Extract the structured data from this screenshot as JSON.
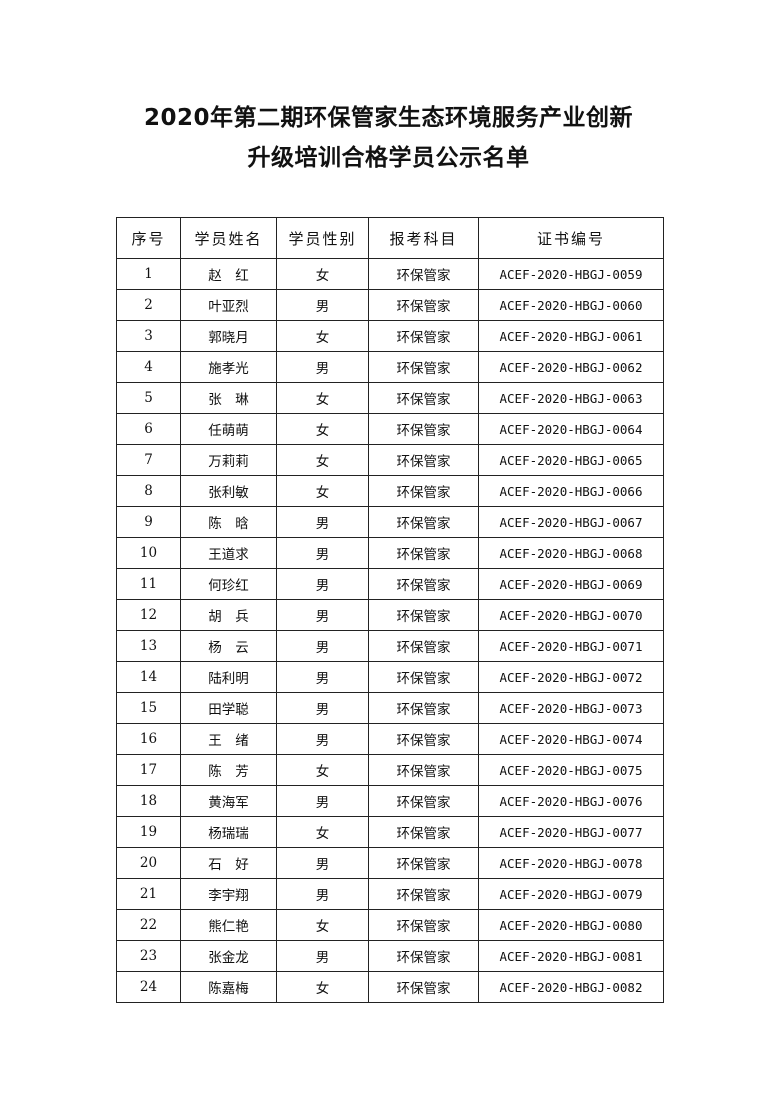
{
  "title_line1": "2020年第二期环保管家生态环境服务产业创新",
  "title_line2": "升级培训合格学员公示名单",
  "table": {
    "headers": [
      "序号",
      "学员姓名",
      "学员性别",
      "报考科目",
      "证书编号"
    ],
    "rows": [
      [
        "1",
        "赵　红",
        "女",
        "环保管家",
        "ACEF-2020-HBGJ-0059"
      ],
      [
        "2",
        "叶亚烈",
        "男",
        "环保管家",
        "ACEF-2020-HBGJ-0060"
      ],
      [
        "3",
        "郭晓月",
        "女",
        "环保管家",
        "ACEF-2020-HBGJ-0061"
      ],
      [
        "4",
        "施孝光",
        "男",
        "环保管家",
        "ACEF-2020-HBGJ-0062"
      ],
      [
        "5",
        "张　琳",
        "女",
        "环保管家",
        "ACEF-2020-HBGJ-0063"
      ],
      [
        "6",
        "任萌萌",
        "女",
        "环保管家",
        "ACEF-2020-HBGJ-0064"
      ],
      [
        "7",
        "万莉莉",
        "女",
        "环保管家",
        "ACEF-2020-HBGJ-0065"
      ],
      [
        "8",
        "张利敏",
        "女",
        "环保管家",
        "ACEF-2020-HBGJ-0066"
      ],
      [
        "9",
        "陈　晗",
        "男",
        "环保管家",
        "ACEF-2020-HBGJ-0067"
      ],
      [
        "10",
        "王道求",
        "男",
        "环保管家",
        "ACEF-2020-HBGJ-0068"
      ],
      [
        "11",
        "何珍红",
        "男",
        "环保管家",
        "ACEF-2020-HBGJ-0069"
      ],
      [
        "12",
        "胡　兵",
        "男",
        "环保管家",
        "ACEF-2020-HBGJ-0070"
      ],
      [
        "13",
        "杨　云",
        "男",
        "环保管家",
        "ACEF-2020-HBGJ-0071"
      ],
      [
        "14",
        "陆利明",
        "男",
        "环保管家",
        "ACEF-2020-HBGJ-0072"
      ],
      [
        "15",
        "田学聪",
        "男",
        "环保管家",
        "ACEF-2020-HBGJ-0073"
      ],
      [
        "16",
        "王　绪",
        "男",
        "环保管家",
        "ACEF-2020-HBGJ-0074"
      ],
      [
        "17",
        "陈　芳",
        "女",
        "环保管家",
        "ACEF-2020-HBGJ-0075"
      ],
      [
        "18",
        "黄海军",
        "男",
        "环保管家",
        "ACEF-2020-HBGJ-0076"
      ],
      [
        "19",
        "杨瑞瑞",
        "女",
        "环保管家",
        "ACEF-2020-HBGJ-0077"
      ],
      [
        "20",
        "石　好",
        "男",
        "环保管家",
        "ACEF-2020-HBGJ-0078"
      ],
      [
        "21",
        "李宇翔",
        "男",
        "环保管家",
        "ACEF-2020-HBGJ-0079"
      ],
      [
        "22",
        "熊仁艳",
        "女",
        "环保管家",
        "ACEF-2020-HBGJ-0080"
      ],
      [
        "23",
        "张金龙",
        "男",
        "环保管家",
        "ACEF-2020-HBGJ-0081"
      ],
      [
        "24",
        "陈嘉梅",
        "女",
        "环保管家",
        "ACEF-2020-HBGJ-0082"
      ]
    ]
  }
}
